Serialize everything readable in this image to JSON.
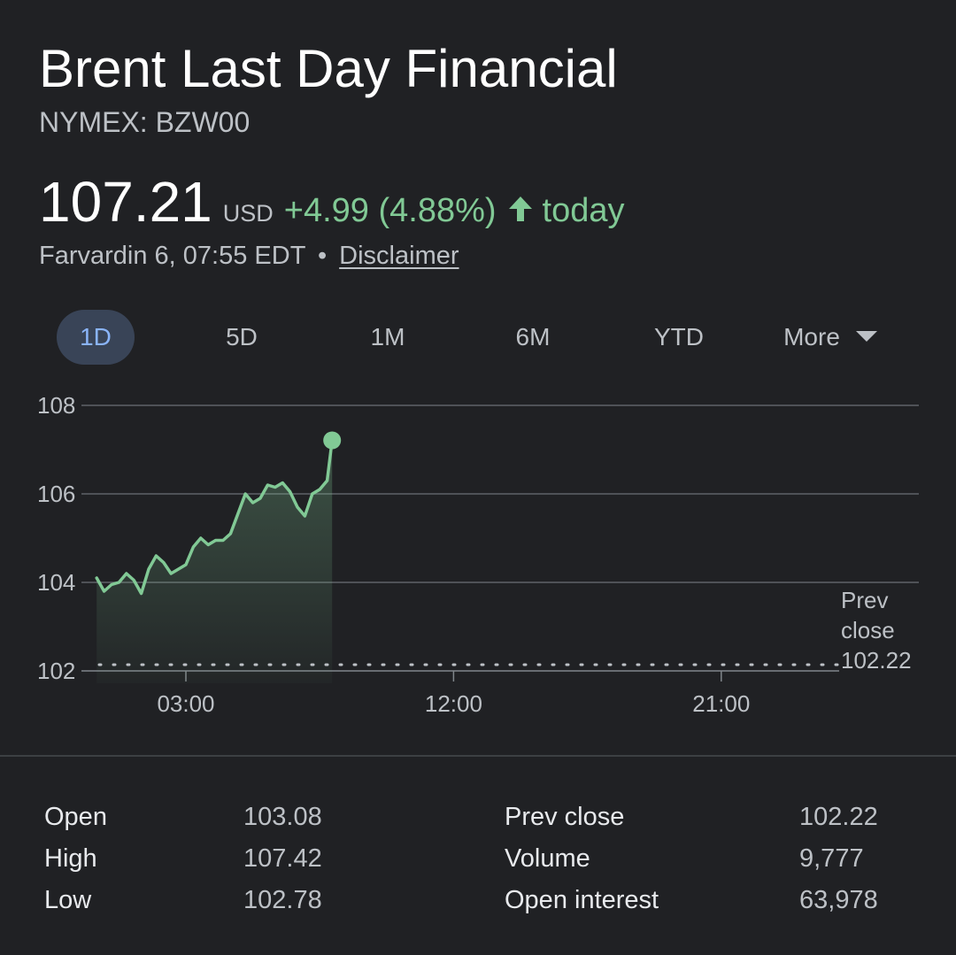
{
  "header": {
    "title": "Brent Last Day Financial",
    "ticker": "NYMEX: BZW00"
  },
  "quote": {
    "price": "107.21",
    "currency": "USD",
    "change": "+4.99 (4.88%)",
    "direction_icon": "arrow-up-icon",
    "period": "today",
    "timestamp": "Farvardin 6, 07:55 EDT",
    "separator": "•",
    "disclaimer": "Disclaimer",
    "accent_color": "#81c995"
  },
  "tabs": {
    "active": "1D",
    "items": [
      {
        "label": "1D"
      },
      {
        "label": "5D"
      },
      {
        "label": "1M"
      },
      {
        "label": "6M"
      },
      {
        "label": "YTD"
      },
      {
        "label": "More",
        "icon": "caret-down-icon"
      }
    ]
  },
  "chart_data": {
    "type": "line",
    "y_ticks": [
      "108",
      "106",
      "104",
      "102"
    ],
    "ylim": [
      102,
      108
    ],
    "x_ticks": [
      "03:00",
      "12:00",
      "21:00"
    ],
    "prev_close_label_1": "Prev",
    "prev_close_label_2": "close",
    "prev_close_value": "102.22",
    "prev_close": 102.22,
    "line_color": "#81c995",
    "series": [
      {
        "x": [
          "00:00",
          "00:15",
          "00:30",
          "00:45",
          "01:00",
          "01:15",
          "01:30",
          "01:45",
          "02:00",
          "02:15",
          "02:30",
          "02:45",
          "03:00",
          "03:15",
          "03:30",
          "03:45",
          "04:00",
          "04:15",
          "04:30",
          "04:45",
          "05:00",
          "05:15",
          "05:30",
          "05:45",
          "06:00",
          "06:15",
          "06:30",
          "06:45",
          "07:00",
          "07:15",
          "07:30",
          "07:45",
          "07:55"
        ],
        "values": [
          104.1,
          103.8,
          103.95,
          104.0,
          104.2,
          104.05,
          103.75,
          104.3,
          104.6,
          104.45,
          104.2,
          104.3,
          104.4,
          104.8,
          105.0,
          104.85,
          104.95,
          104.95,
          105.1,
          105.55,
          106.0,
          105.8,
          105.9,
          106.2,
          106.15,
          106.25,
          106.05,
          105.7,
          105.5,
          106.0,
          106.1,
          106.3,
          107.21
        ]
      }
    ],
    "end_value": 107.21
  },
  "stats": {
    "left": [
      {
        "label": "Open",
        "value": "103.08"
      },
      {
        "label": "High",
        "value": "107.42"
      },
      {
        "label": "Low",
        "value": "102.78"
      }
    ],
    "right": [
      {
        "label": "Prev close",
        "value": "102.22"
      },
      {
        "label": "Volume",
        "value": "9,777"
      },
      {
        "label": "Open interest",
        "value": "63,978"
      }
    ]
  }
}
